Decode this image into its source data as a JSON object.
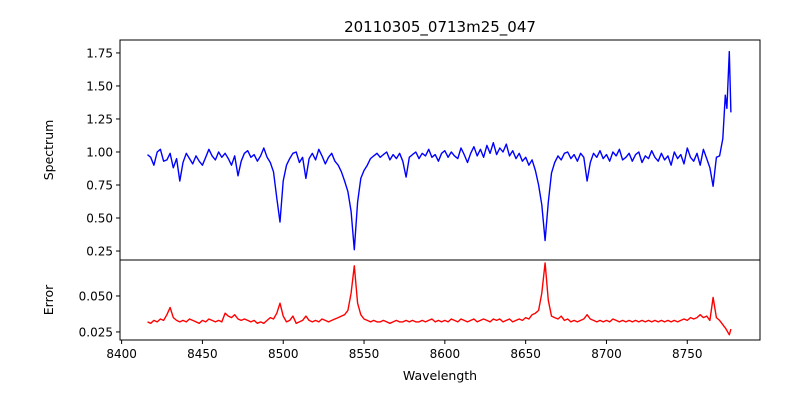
{
  "chart_data": [
    {
      "type": "line",
      "panel": "top",
      "title": "20110305_0713m25_047",
      "xlabel": "",
      "ylabel": "Spectrum",
      "xlim": [
        8399,
        8795
      ],
      "ylim": [
        0.182,
        1.848
      ],
      "yticks": [
        0.25,
        0.5,
        0.75,
        1.0,
        1.25,
        1.5,
        1.75
      ],
      "ytick_labels": [
        "0.25",
        "0.50",
        "0.75",
        "1.00",
        "1.25",
        "1.50",
        "1.75"
      ],
      "color": "#0000ff",
      "x_start": 8416,
      "x_step": 2,
      "values": [
        0.98,
        0.96,
        0.9,
        1.0,
        1.02,
        0.93,
        0.94,
        0.99,
        0.88,
        0.95,
        0.78,
        0.92,
        0.99,
        0.95,
        0.91,
        0.97,
        0.93,
        0.9,
        0.96,
        1.02,
        0.97,
        0.94,
        1.0,
        0.96,
        0.99,
        0.95,
        0.9,
        0.97,
        0.82,
        0.93,
        0.99,
        1.01,
        0.96,
        0.98,
        0.93,
        0.97,
        1.03,
        0.96,
        0.92,
        0.85,
        0.65,
        0.47,
        0.78,
        0.9,
        0.95,
        0.99,
        1.0,
        0.92,
        0.96,
        0.8,
        0.95,
        0.99,
        0.94,
        1.02,
        0.97,
        0.91,
        0.96,
        0.99,
        0.93,
        0.9,
        0.85,
        0.78,
        0.7,
        0.55,
        0.26,
        0.62,
        0.8,
        0.86,
        0.9,
        0.95,
        0.97,
        0.99,
        0.96,
        0.98,
        1.0,
        0.94,
        0.98,
        0.95,
        0.99,
        0.93,
        0.81,
        0.96,
        0.98,
        1.0,
        0.95,
        0.99,
        0.97,
        1.02,
        0.96,
        0.98,
        0.93,
        0.99,
        1.01,
        0.96,
        1.0,
        0.97,
        0.95,
        1.03,
        0.98,
        0.92,
        0.99,
        1.04,
        0.97,
        1.02,
        0.96,
        1.05,
        0.99,
        1.07,
        0.98,
        1.03,
        1.0,
        1.06,
        0.97,
        1.01,
        0.95,
        0.99,
        0.93,
        0.96,
        0.9,
        0.94,
        0.86,
        0.75,
        0.6,
        0.33,
        0.62,
        0.84,
        0.92,
        0.97,
        0.94,
        0.99,
        1.0,
        0.95,
        0.98,
        0.93,
        0.99,
        0.96,
        0.78,
        0.92,
        0.99,
        0.96,
        1.01,
        0.95,
        0.98,
        0.93,
        1.0,
        0.97,
        1.02,
        0.94,
        0.96,
        0.99,
        0.93,
        0.98,
        1.0,
        0.92,
        0.97,
        0.95,
        1.01,
        0.96,
        0.93,
        0.99,
        0.94,
        0.97,
        0.9,
        1.0,
        0.95,
        0.98,
        0.91,
        1.03,
        0.96,
        0.93,
        0.99,
        0.9,
        1.02,
        0.95,
        0.88,
        0.74,
        0.96
      ],
      "tail": [
        [
          8770,
          0.97
        ],
        [
          8772,
          1.1
        ],
        [
          8773.5,
          1.43
        ],
        [
          8774.5,
          1.33
        ],
        [
          8776,
          1.76
        ],
        [
          8777,
          1.3
        ]
      ]
    },
    {
      "type": "line",
      "panel": "bottom",
      "xlabel": "Wavelength",
      "ylabel": "Error",
      "xlim": [
        8399,
        8795
      ],
      "ylim": [
        0.0194,
        0.075
      ],
      "xticks": [
        8400,
        8450,
        8500,
        8550,
        8600,
        8650,
        8700,
        8750
      ],
      "xtick_labels": [
        "8400",
        "8450",
        "8500",
        "8550",
        "8600",
        "8650",
        "8700",
        "8750"
      ],
      "yticks": [
        0.025,
        0.05
      ],
      "ytick_labels": [
        "0.025",
        "0.050"
      ],
      "color": "#ff0000",
      "x_start": 8416,
      "x_step": 2,
      "values": [
        0.032,
        0.031,
        0.033,
        0.032,
        0.034,
        0.033,
        0.037,
        0.042,
        0.035,
        0.033,
        0.032,
        0.033,
        0.032,
        0.034,
        0.033,
        0.032,
        0.031,
        0.033,
        0.032,
        0.034,
        0.033,
        0.032,
        0.033,
        0.032,
        0.038,
        0.036,
        0.035,
        0.037,
        0.034,
        0.033,
        0.034,
        0.033,
        0.032,
        0.033,
        0.031,
        0.032,
        0.031,
        0.033,
        0.035,
        0.034,
        0.038,
        0.045,
        0.036,
        0.032,
        0.033,
        0.036,
        0.031,
        0.032,
        0.033,
        0.036,
        0.033,
        0.032,
        0.033,
        0.032,
        0.034,
        0.033,
        0.032,
        0.033,
        0.034,
        0.035,
        0.036,
        0.037,
        0.04,
        0.052,
        0.071,
        0.045,
        0.037,
        0.034,
        0.033,
        0.032,
        0.033,
        0.032,
        0.032,
        0.033,
        0.032,
        0.031,
        0.032,
        0.033,
        0.032,
        0.032,
        0.033,
        0.032,
        0.033,
        0.032,
        0.032,
        0.033,
        0.032,
        0.033,
        0.034,
        0.032,
        0.033,
        0.032,
        0.033,
        0.032,
        0.034,
        0.033,
        0.032,
        0.034,
        0.033,
        0.032,
        0.033,
        0.034,
        0.032,
        0.033,
        0.034,
        0.033,
        0.032,
        0.034,
        0.033,
        0.034,
        0.032,
        0.033,
        0.034,
        0.032,
        0.033,
        0.034,
        0.033,
        0.035,
        0.034,
        0.037,
        0.038,
        0.04,
        0.052,
        0.073,
        0.047,
        0.036,
        0.035,
        0.034,
        0.036,
        0.033,
        0.034,
        0.032,
        0.033,
        0.032,
        0.033,
        0.034,
        0.037,
        0.034,
        0.033,
        0.032,
        0.033,
        0.032,
        0.033,
        0.032,
        0.034,
        0.033,
        0.032,
        0.033,
        0.032,
        0.033,
        0.032,
        0.033,
        0.032,
        0.033,
        0.032,
        0.033,
        0.032,
        0.033,
        0.032,
        0.033,
        0.032,
        0.033,
        0.032,
        0.033,
        0.032,
        0.033,
        0.034,
        0.033,
        0.035,
        0.034,
        0.035,
        0.037,
        0.035,
        0.036,
        0.033,
        0.049,
        0.035
      ],
      "tail": [
        [
          8770,
          0.033
        ],
        [
          8772,
          0.03
        ],
        [
          8774,
          0.027
        ],
        [
          8776,
          0.023
        ],
        [
          8777,
          0.027
        ]
      ]
    }
  ]
}
